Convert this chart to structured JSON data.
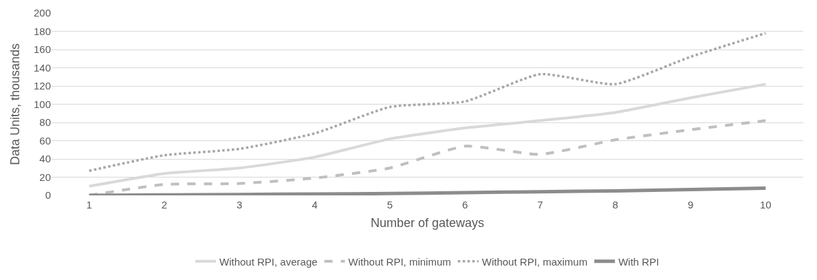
{
  "chart_data": {
    "type": "line",
    "xlabel": "Number of gateways",
    "ylabel": "Data Units, thousands",
    "categories": [
      "1",
      "2",
      "3",
      "4",
      "5",
      "6",
      "7",
      "8",
      "9",
      "10"
    ],
    "series": [
      {
        "name": "Without RPI, average",
        "color": "#d9d9d9",
        "line_style": "solid",
        "values": [
          10,
          24,
          30,
          42,
          62,
          74,
          82,
          91,
          107,
          122
        ]
      },
      {
        "name": "Without RPI, minimum",
        "color": "#bfbfbf",
        "line_style": "dashed",
        "values": [
          0,
          12,
          13,
          19,
          30,
          54,
          45,
          61,
          72,
          82
        ]
      },
      {
        "name": "Without RPI, maximum",
        "color": "#a6a6a6",
        "line_style": "dotted",
        "values": [
          27,
          44,
          51,
          68,
          97,
          103,
          133,
          122,
          152,
          178
        ]
      },
      {
        "name": "With RPI",
        "color": "#8c8c8c",
        "line_style": "solid",
        "values": [
          0,
          0.5,
          1,
          1.5,
          2,
          3,
          4,
          5,
          6.5,
          8
        ]
      }
    ],
    "ylim": [
      0,
      200
    ],
    "yticks": [
      0,
      20,
      40,
      60,
      80,
      100,
      120,
      140,
      160,
      180,
      200
    ],
    "grid": "y",
    "legend": "bottom",
    "marker": "none"
  }
}
